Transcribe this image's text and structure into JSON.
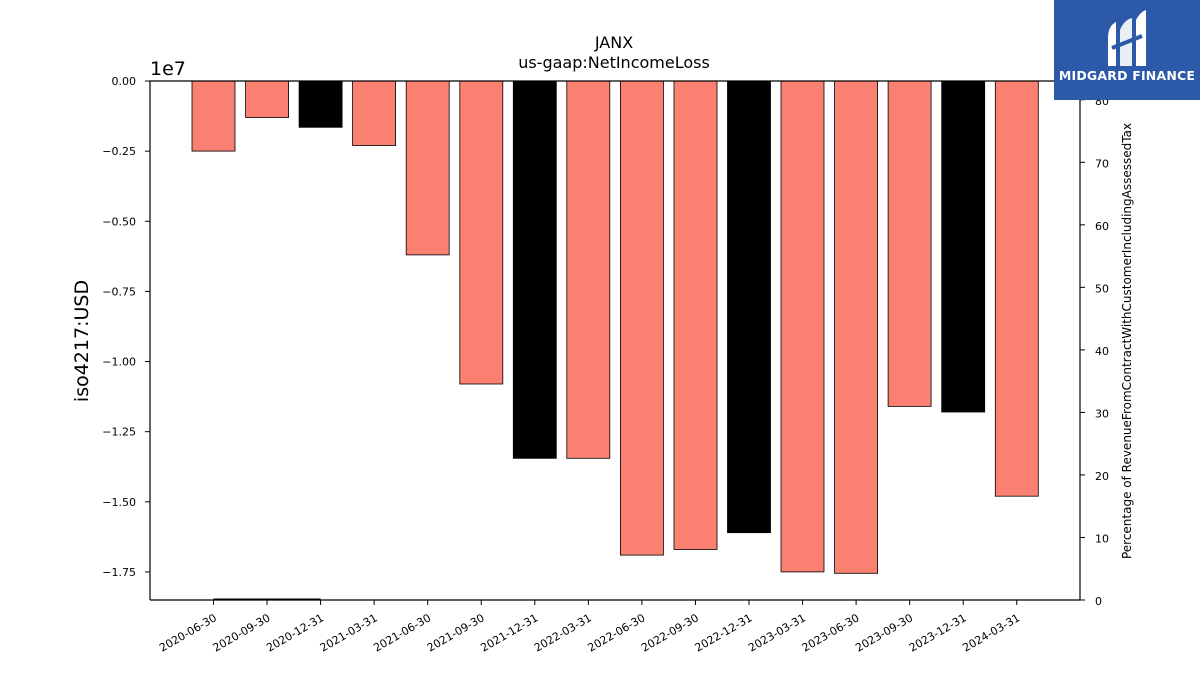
{
  "chart_data": {
    "type": "bar",
    "title": "JANX",
    "subtitle": "us-gaap:NetIncomeLoss",
    "ylabel": "iso4217:USD",
    "y2label": "Percentage of RevenueFromContractWithCustomerIncludingAssessedTax",
    "y_offset_label": "1e7",
    "ylim": [
      -18500000,
      0
    ],
    "y2lim": [
      0,
      83
    ],
    "yticks": [
      0,
      -2500000,
      -5000000,
      -7500000,
      -10000000,
      -12500000,
      -15000000,
      -17500000
    ],
    "ytick_labels": [
      "0.00",
      "−0.25",
      "−0.50",
      "−0.75",
      "−1.00",
      "−1.25",
      "−1.50",
      "−1.75"
    ],
    "y2ticks": [
      0,
      10,
      20,
      30,
      40,
      50,
      60,
      70,
      80
    ],
    "y2tick_labels": [
      "0",
      "10",
      "20",
      "30",
      "40",
      "50",
      "60",
      "70",
      "80"
    ],
    "categories": [
      "2020-06-30",
      "2020-09-30",
      "2020-12-31",
      "2021-03-31",
      "2021-06-30",
      "2021-09-30",
      "2021-12-31",
      "2022-03-31",
      "2022-06-30",
      "2022-09-30",
      "2022-12-31",
      "2023-03-31",
      "2023-06-30",
      "2023-09-30",
      "2023-12-31",
      "2024-03-31"
    ],
    "values": [
      -2500000,
      -1300000,
      -1650000,
      -2300000,
      -6200000,
      -10800000,
      -13450000,
      -13450000,
      -16900000,
      -16700000,
      -16100000,
      -17500000,
      -17550000,
      -11600000,
      -11800000,
      -14800000
    ],
    "bar_colors": [
      "#fa8072",
      "#fa8072",
      "#000000",
      "#fa8072",
      "#fa8072",
      "#fa8072",
      "#000000",
      "#fa8072",
      "#fa8072",
      "#fa8072",
      "#000000",
      "#fa8072",
      "#fa8072",
      "#fa8072",
      "#000000",
      "#fa8072"
    ],
    "secondary_line": {
      "x_start": "2020-06-30",
      "x_end": "2020-12-31",
      "value": 0
    },
    "grid": false
  },
  "logo": {
    "text": "MIDGARD FINANCE",
    "background": "#2c5aa8"
  }
}
